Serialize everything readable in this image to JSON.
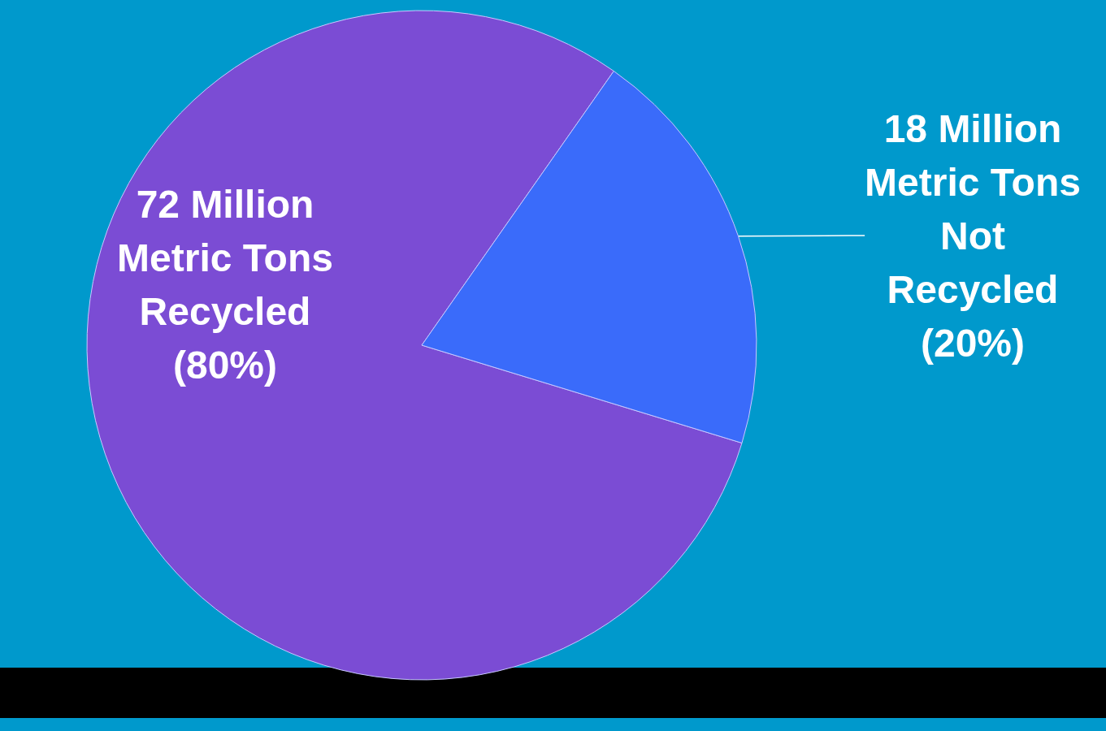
{
  "chart_data": {
    "type": "pie",
    "categories": [
      null,
      null
    ],
    "values": [
      72,
      18
    ],
    "colors": [
      "#7b4cd4",
      "#3a6bfa"
    ],
    "value_labels": [
      "72 Million\nMetric Tons\nRecycled\n(80%)",
      "18 Million\nMetric Tons\nNot\nRecycled\n(20%)"
    ]
  }
}
